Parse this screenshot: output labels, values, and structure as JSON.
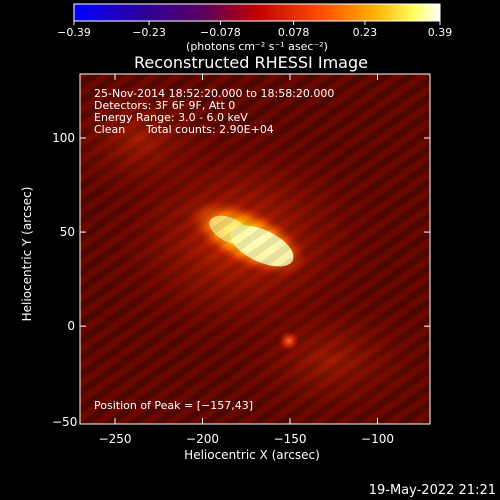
{
  "chart_data": {
    "type": "heatmap",
    "title": "Reconstructed RHESSI Image",
    "xlabel": "Heliocentric X (arcsec)",
    "ylabel": "Heliocentric Y (arcsec)",
    "xlim": [
      -270,
      -70
    ],
    "ylim": [
      -52,
      134
    ],
    "x_ticks": [
      -250,
      -200,
      -150,
      -100
    ],
    "x_tick_labels": [
      "−250",
      "−200",
      "−150",
      "−100"
    ],
    "y_ticks": [
      0,
      50,
      100
    ],
    "y_tick_labels": [
      "0",
      "50",
      "100"
    ],
    "y_corner_tick_label": "−50",
    "colorbar": {
      "range": [
        -0.39,
        0.39
      ],
      "ticks": [
        -0.39,
        -0.23,
        -0.078,
        0.078,
        0.23,
        0.39
      ],
      "tick_labels": [
        "−0.39",
        "−0.23",
        "−0.078",
        "0.078",
        "0.23",
        "0.39"
      ],
      "units": "(photons cm⁻² s⁻¹ asec⁻²)",
      "colormap": "blue-purple-red-yellow-white"
    },
    "sources": [
      {
        "x": -170,
        "y": 50,
        "description": "main elongated source"
      },
      {
        "x": -157,
        "y": 43,
        "description": "peak"
      },
      {
        "x": -150,
        "y": -5,
        "description": "secondary compact source"
      }
    ],
    "peak": {
      "x": -157,
      "y": 43
    },
    "grid": false
  },
  "annotations": {
    "time_range": "25-Nov-2014 18:52:20.000 to 18:58:20.000",
    "detectors": "Detectors: 3F 6F 9F, Att 0",
    "energy": "Energy Range: 3.0 - 6.0 keV",
    "clean_label": "Clean",
    "total_counts": "Total counts: 2.90E+04",
    "peak_text": "Position of Peak = [−157,43]"
  },
  "footer": {
    "date": "19-May-2022 21:21"
  },
  "colors": {
    "background": "#000000",
    "foreground": "#ffffff",
    "colormap_stops": [
      "#0000ff",
      "#300070",
      "#8a0000",
      "#e02000",
      "#ff9a00",
      "#ffff80",
      "#ffffff"
    ]
  }
}
